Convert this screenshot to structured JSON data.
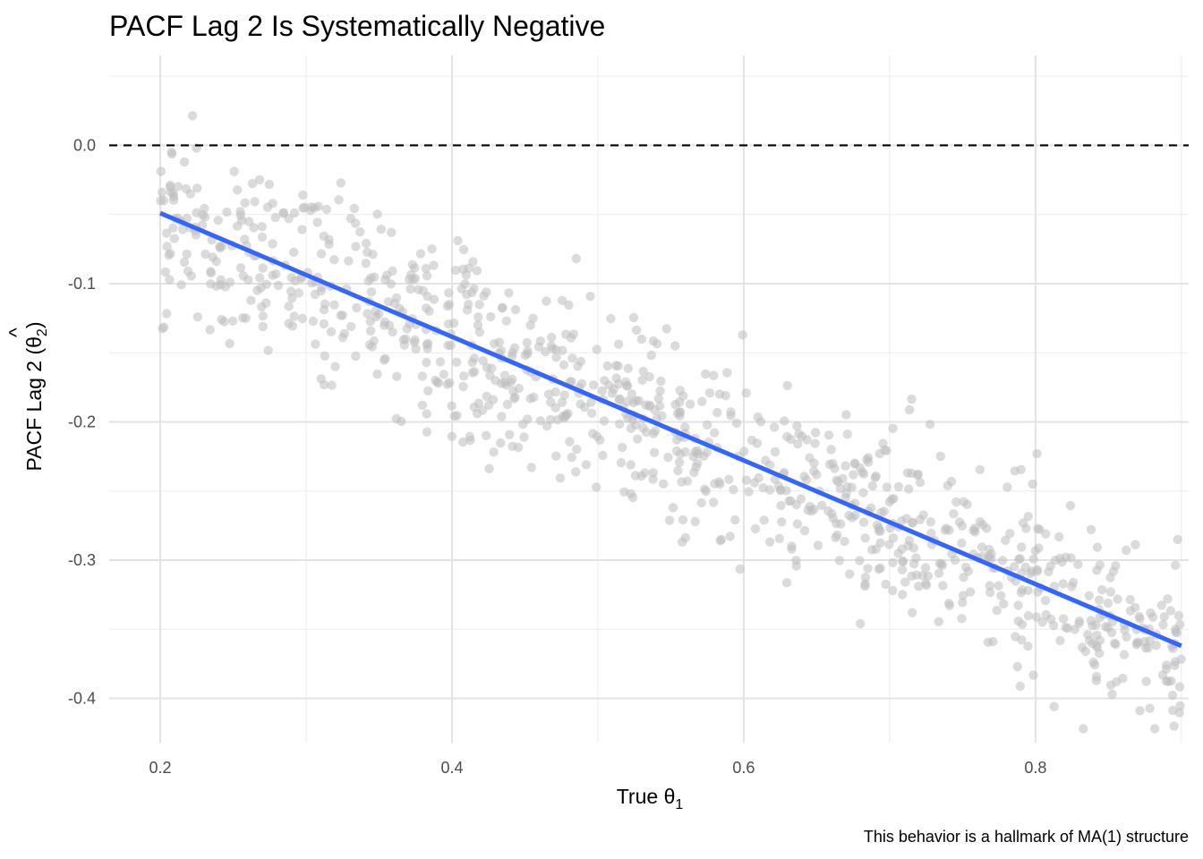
{
  "chart_data": {
    "type": "scatter",
    "title": "PACF Lag 2 Is Systematically Negative",
    "caption": "This behavior is a hallmark of MA(1) structure",
    "xlabel": {
      "text": "True θ",
      "subscript": "1"
    },
    "ylabel": {
      "prefix": "PACF Lag 2 (",
      "symbol": "θ",
      "hat": "^",
      "subscript": "2",
      "suffix": ")"
    },
    "xlim": [
      0.165,
      0.905
    ],
    "ylim": [
      -0.432,
      0.065
    ],
    "x_ticks": [
      0.2,
      0.4,
      0.6,
      0.8
    ],
    "x_tick_labels": [
      "0.2",
      "0.4",
      "0.6",
      "0.8"
    ],
    "y_ticks": [
      0.0,
      -0.1,
      -0.2,
      -0.3,
      -0.4
    ],
    "y_tick_labels": [
      "0.0",
      "-0.1",
      "-0.2",
      "-0.3",
      "-0.4"
    ],
    "grid": true,
    "reference_line": {
      "y": 0.0,
      "style": "dashed",
      "color": "#000000"
    },
    "trend_line": {
      "x": [
        0.2,
        0.9
      ],
      "y": [
        -0.049,
        -0.362
      ],
      "color": "#3366FF"
    },
    "point_color": "#BDBDBD",
    "points": {
      "n": 1000,
      "x_range": [
        0.2,
        0.9
      ],
      "trend_intercept": 0.0404,
      "trend_slope": -0.447,
      "noise_sd": 0.034,
      "seed": 7
    }
  }
}
